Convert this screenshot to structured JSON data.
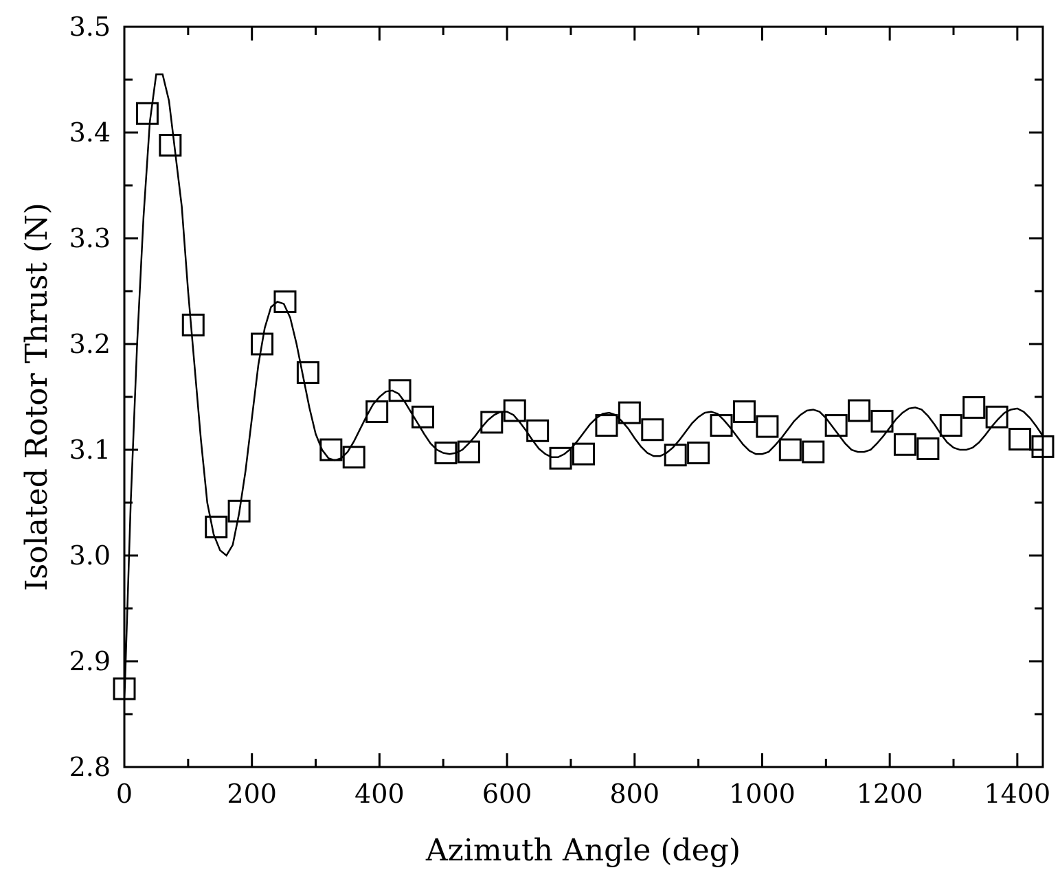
{
  "chart_data": {
    "type": "line",
    "title": "",
    "xlabel": "Azimuth Angle (deg)",
    "ylabel": "Isolated Rotor Thrust (N)",
    "xlim": [
      0,
      1440
    ],
    "ylim": [
      2.8,
      3.5
    ],
    "xticks": [
      0,
      200,
      400,
      600,
      800,
      1000,
      1200,
      1400
    ],
    "xtick_labels": [
      "0",
      "200",
      "400",
      "600",
      "800",
      "1000",
      "1200",
      "1400"
    ],
    "yticks": [
      2.8,
      2.9,
      3.0,
      3.1,
      3.2,
      3.3,
      3.4,
      3.5
    ],
    "ytick_labels": [
      "2.8",
      "2.9",
      "3.0",
      "3.1",
      "3.2",
      "3.3",
      "3.4",
      "3.5"
    ],
    "grid": false,
    "legend": "none",
    "series": [
      {
        "style": "line",
        "color": "#000000",
        "x": [
          0,
          10,
          20,
          30,
          40,
          50,
          60,
          70,
          80,
          90,
          100,
          110,
          120,
          130,
          140,
          150,
          160,
          170,
          180,
          190,
          200,
          210,
          220,
          230,
          240,
          250,
          260,
          270,
          280,
          290,
          300,
          310,
          320,
          330,
          340,
          350,
          360,
          370,
          380,
          390,
          400,
          410,
          420,
          430,
          440,
          450,
          460,
          470,
          480,
          490,
          500,
          510,
          520,
          530,
          540,
          550,
          560,
          570,
          580,
          590,
          600,
          610,
          620,
          630,
          640,
          650,
          660,
          670,
          680,
          690,
          700,
          710,
          720,
          730,
          740,
          750,
          760,
          770,
          780,
          790,
          800,
          810,
          820,
          830,
          840,
          850,
          860,
          870,
          880,
          890,
          900,
          910,
          920,
          930,
          940,
          950,
          960,
          970,
          980,
          990,
          1000,
          1010,
          1020,
          1030,
          1040,
          1050,
          1060,
          1070,
          1080,
          1090,
          1100,
          1110,
          1120,
          1130,
          1140,
          1150,
          1160,
          1170,
          1180,
          1190,
          1200,
          1210,
          1220,
          1230,
          1240,
          1250,
          1260,
          1270,
          1280,
          1290,
          1300,
          1310,
          1320,
          1330,
          1340,
          1350,
          1360,
          1370,
          1380,
          1390,
          1400,
          1410,
          1420,
          1430,
          1440
        ],
        "y": [
          2.86,
          3.05,
          3.2,
          3.32,
          3.41,
          3.455,
          3.455,
          3.43,
          3.38,
          3.33,
          3.25,
          3.18,
          3.11,
          3.05,
          3.02,
          3.005,
          3.0,
          3.01,
          3.04,
          3.08,
          3.13,
          3.18,
          3.215,
          3.235,
          3.24,
          3.238,
          3.225,
          3.2,
          3.17,
          3.14,
          3.115,
          3.1,
          3.092,
          3.09,
          3.092,
          3.098,
          3.108,
          3.12,
          3.132,
          3.143,
          3.15,
          3.155,
          3.156,
          3.153,
          3.145,
          3.135,
          3.125,
          3.115,
          3.106,
          3.1,
          3.097,
          3.096,
          3.097,
          3.1,
          3.106,
          3.113,
          3.121,
          3.128,
          3.133,
          3.136,
          3.136,
          3.133,
          3.126,
          3.118,
          3.109,
          3.101,
          3.096,
          3.093,
          3.093,
          3.096,
          3.101,
          3.108,
          3.116,
          3.124,
          3.13,
          3.134,
          3.135,
          3.133,
          3.127,
          3.12,
          3.111,
          3.103,
          3.097,
          3.094,
          3.094,
          3.097,
          3.102,
          3.109,
          3.117,
          3.125,
          3.131,
          3.135,
          3.136,
          3.134,
          3.128,
          3.121,
          3.113,
          3.105,
          3.099,
          3.096,
          3.096,
          3.098,
          3.104,
          3.111,
          3.119,
          3.127,
          3.133,
          3.137,
          3.138,
          3.136,
          3.13,
          3.122,
          3.114,
          3.106,
          3.1,
          3.098,
          3.098,
          3.1,
          3.106,
          3.113,
          3.121,
          3.129,
          3.135,
          3.139,
          3.14,
          3.138,
          3.132,
          3.124,
          3.115,
          3.107,
          3.102,
          3.1,
          3.1,
          3.102,
          3.107,
          3.114,
          3.122,
          3.129,
          3.135,
          3.138,
          3.139,
          3.136,
          3.13,
          3.122,
          3.113
        ]
      },
      {
        "style": "square-markers",
        "color": "#000000",
        "x": [
          0,
          36,
          72,
          108,
          144,
          180,
          216,
          252,
          288,
          324,
          360,
          396,
          432,
          468,
          504,
          540,
          576,
          612,
          648,
          684,
          720,
          756,
          792,
          828,
          864,
          900,
          936,
          972,
          1008,
          1044,
          1080,
          1116,
          1152,
          1188,
          1224,
          1260,
          1296,
          1332,
          1368,
          1404,
          1440
        ],
        "y": [
          2.874,
          3.418,
          3.388,
          3.218,
          3.027,
          3.042,
          3.2,
          3.24,
          3.173,
          3.1,
          3.093,
          3.136,
          3.156,
          3.131,
          3.097,
          3.098,
          3.126,
          3.137,
          3.118,
          3.092,
          3.096,
          3.123,
          3.135,
          3.119,
          3.095,
          3.097,
          3.123,
          3.136,
          3.122,
          3.1,
          3.098,
          3.123,
          3.137,
          3.127,
          3.105,
          3.101,
          3.123,
          3.14,
          3.131,
          3.11,
          3.103
        ]
      }
    ]
  }
}
